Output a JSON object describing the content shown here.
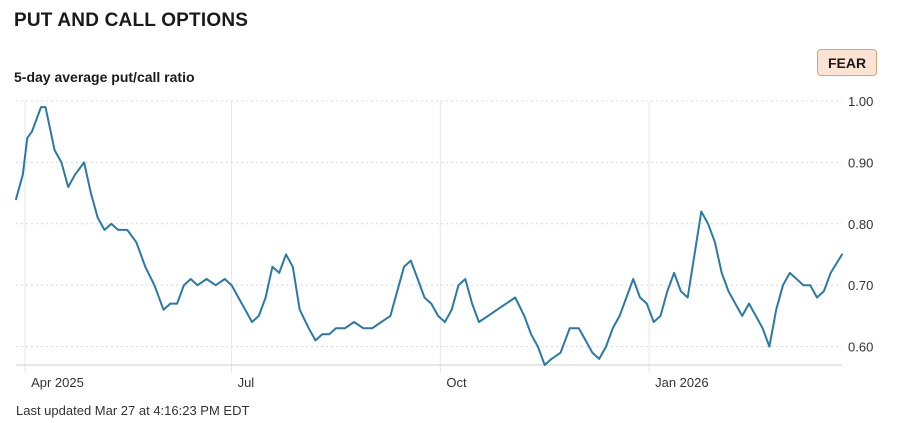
{
  "header": {
    "title": "PUT AND CALL OPTIONS",
    "subtitle": "5-day average put/call ratio",
    "badge": "FEAR"
  },
  "footer": {
    "updated": "Last updated Mar 27 at 4:16:23 PM EDT"
  },
  "colors": {
    "line": "#2a79a6",
    "badge_bg": "#fbe3d3",
    "badge_border": "#e0a07a"
  },
  "chart_data": {
    "type": "line",
    "title": "5-day average put/call ratio",
    "yticks": [
      "1.00",
      "0.90",
      "0.80",
      "0.70",
      "0.60"
    ],
    "ytick_values": [
      1.0,
      0.9,
      0.8,
      0.7,
      0.6
    ],
    "ylim": [
      0.57,
      1.0
    ],
    "xticks": [
      {
        "label": "Apr 2025",
        "date": "2025-04-01"
      },
      {
        "label": "Jul",
        "date": "2025-07-01"
      },
      {
        "label": "Oct",
        "date": "2025-10-01"
      },
      {
        "label": "Jan 2026",
        "date": "2026-01-01"
      }
    ],
    "xlim": [
      "2025-03-28",
      "2026-03-27"
    ],
    "grid": "horizontal dashed",
    "series": [
      {
        "values": [
          [
            "2025-03-28",
            0.84
          ],
          [
            "2025-03-31",
            0.88
          ],
          [
            "2025-04-02",
            0.94
          ],
          [
            "2025-04-04",
            0.95
          ],
          [
            "2025-04-08",
            0.99
          ],
          [
            "2025-04-10",
            0.99
          ],
          [
            "2025-04-14",
            0.92
          ],
          [
            "2025-04-17",
            0.9
          ],
          [
            "2025-04-20",
            0.86
          ],
          [
            "2025-04-23",
            0.88
          ],
          [
            "2025-04-27",
            0.9
          ],
          [
            "2025-04-30",
            0.85
          ],
          [
            "2025-05-03",
            0.81
          ],
          [
            "2025-05-06",
            0.79
          ],
          [
            "2025-05-09",
            0.8
          ],
          [
            "2025-05-12",
            0.79
          ],
          [
            "2025-05-16",
            0.79
          ],
          [
            "2025-05-20",
            0.77
          ],
          [
            "2025-05-24",
            0.73
          ],
          [
            "2025-05-28",
            0.7
          ],
          [
            "2025-06-01",
            0.66
          ],
          [
            "2025-06-04",
            0.67
          ],
          [
            "2025-06-07",
            0.67
          ],
          [
            "2025-06-10",
            0.7
          ],
          [
            "2025-06-13",
            0.71
          ],
          [
            "2025-06-16",
            0.7
          ],
          [
            "2025-06-20",
            0.71
          ],
          [
            "2025-06-24",
            0.7
          ],
          [
            "2025-06-28",
            0.71
          ],
          [
            "2025-07-01",
            0.7
          ],
          [
            "2025-07-04",
            0.68
          ],
          [
            "2025-07-07",
            0.66
          ],
          [
            "2025-07-10",
            0.64
          ],
          [
            "2025-07-13",
            0.65
          ],
          [
            "2025-07-16",
            0.68
          ],
          [
            "2025-07-19",
            0.73
          ],
          [
            "2025-07-22",
            0.72
          ],
          [
            "2025-07-25",
            0.75
          ],
          [
            "2025-07-28",
            0.73
          ],
          [
            "2025-07-31",
            0.66
          ],
          [
            "2025-08-04",
            0.63
          ],
          [
            "2025-08-07",
            0.61
          ],
          [
            "2025-08-10",
            0.62
          ],
          [
            "2025-08-13",
            0.62
          ],
          [
            "2025-08-16",
            0.63
          ],
          [
            "2025-08-20",
            0.63
          ],
          [
            "2025-08-24",
            0.64
          ],
          [
            "2025-08-28",
            0.63
          ],
          [
            "2025-09-01",
            0.63
          ],
          [
            "2025-09-05",
            0.64
          ],
          [
            "2025-09-09",
            0.65
          ],
          [
            "2025-09-12",
            0.69
          ],
          [
            "2025-09-15",
            0.73
          ],
          [
            "2025-09-18",
            0.74
          ],
          [
            "2025-09-21",
            0.71
          ],
          [
            "2025-09-24",
            0.68
          ],
          [
            "2025-09-27",
            0.67
          ],
          [
            "2025-09-30",
            0.65
          ],
          [
            "2025-10-03",
            0.64
          ],
          [
            "2025-10-06",
            0.66
          ],
          [
            "2025-10-09",
            0.7
          ],
          [
            "2025-10-12",
            0.71
          ],
          [
            "2025-10-15",
            0.67
          ],
          [
            "2025-10-18",
            0.64
          ],
          [
            "2025-10-22",
            0.65
          ],
          [
            "2025-10-26",
            0.66
          ],
          [
            "2025-10-30",
            0.67
          ],
          [
            "2025-11-03",
            0.68
          ],
          [
            "2025-11-07",
            0.65
          ],
          [
            "2025-11-10",
            0.62
          ],
          [
            "2025-11-13",
            0.6
          ],
          [
            "2025-11-16",
            0.57
          ],
          [
            "2025-11-19",
            0.58
          ],
          [
            "2025-11-23",
            0.59
          ],
          [
            "2025-11-27",
            0.63
          ],
          [
            "2025-12-01",
            0.63
          ],
          [
            "2025-12-04",
            0.61
          ],
          [
            "2025-12-07",
            0.59
          ],
          [
            "2025-12-10",
            0.58
          ],
          [
            "2025-12-13",
            0.6
          ],
          [
            "2025-12-16",
            0.63
          ],
          [
            "2025-12-19",
            0.65
          ],
          [
            "2025-12-22",
            0.68
          ],
          [
            "2025-12-25",
            0.71
          ],
          [
            "2025-12-28",
            0.68
          ],
          [
            "2025-12-31",
            0.67
          ],
          [
            "2026-01-03",
            0.64
          ],
          [
            "2026-01-06",
            0.65
          ],
          [
            "2026-01-09",
            0.69
          ],
          [
            "2026-01-12",
            0.72
          ],
          [
            "2026-01-15",
            0.69
          ],
          [
            "2026-01-18",
            0.68
          ],
          [
            "2026-01-21",
            0.75
          ],
          [
            "2026-01-24",
            0.82
          ],
          [
            "2026-01-27",
            0.8
          ],
          [
            "2026-01-30",
            0.77
          ],
          [
            "2026-02-02",
            0.72
          ],
          [
            "2026-02-05",
            0.69
          ],
          [
            "2026-02-08",
            0.67
          ],
          [
            "2026-02-11",
            0.65
          ],
          [
            "2026-02-14",
            0.67
          ],
          [
            "2026-02-17",
            0.65
          ],
          [
            "2026-02-20",
            0.63
          ],
          [
            "2026-02-23",
            0.6
          ],
          [
            "2026-02-26",
            0.66
          ],
          [
            "2026-03-01",
            0.7
          ],
          [
            "2026-03-04",
            0.72
          ],
          [
            "2026-03-07",
            0.71
          ],
          [
            "2026-03-10",
            0.7
          ],
          [
            "2026-03-13",
            0.7
          ],
          [
            "2026-03-16",
            0.68
          ],
          [
            "2026-03-19",
            0.69
          ],
          [
            "2026-03-22",
            0.72
          ],
          [
            "2026-03-27",
            0.75
          ]
        ]
      }
    ]
  }
}
